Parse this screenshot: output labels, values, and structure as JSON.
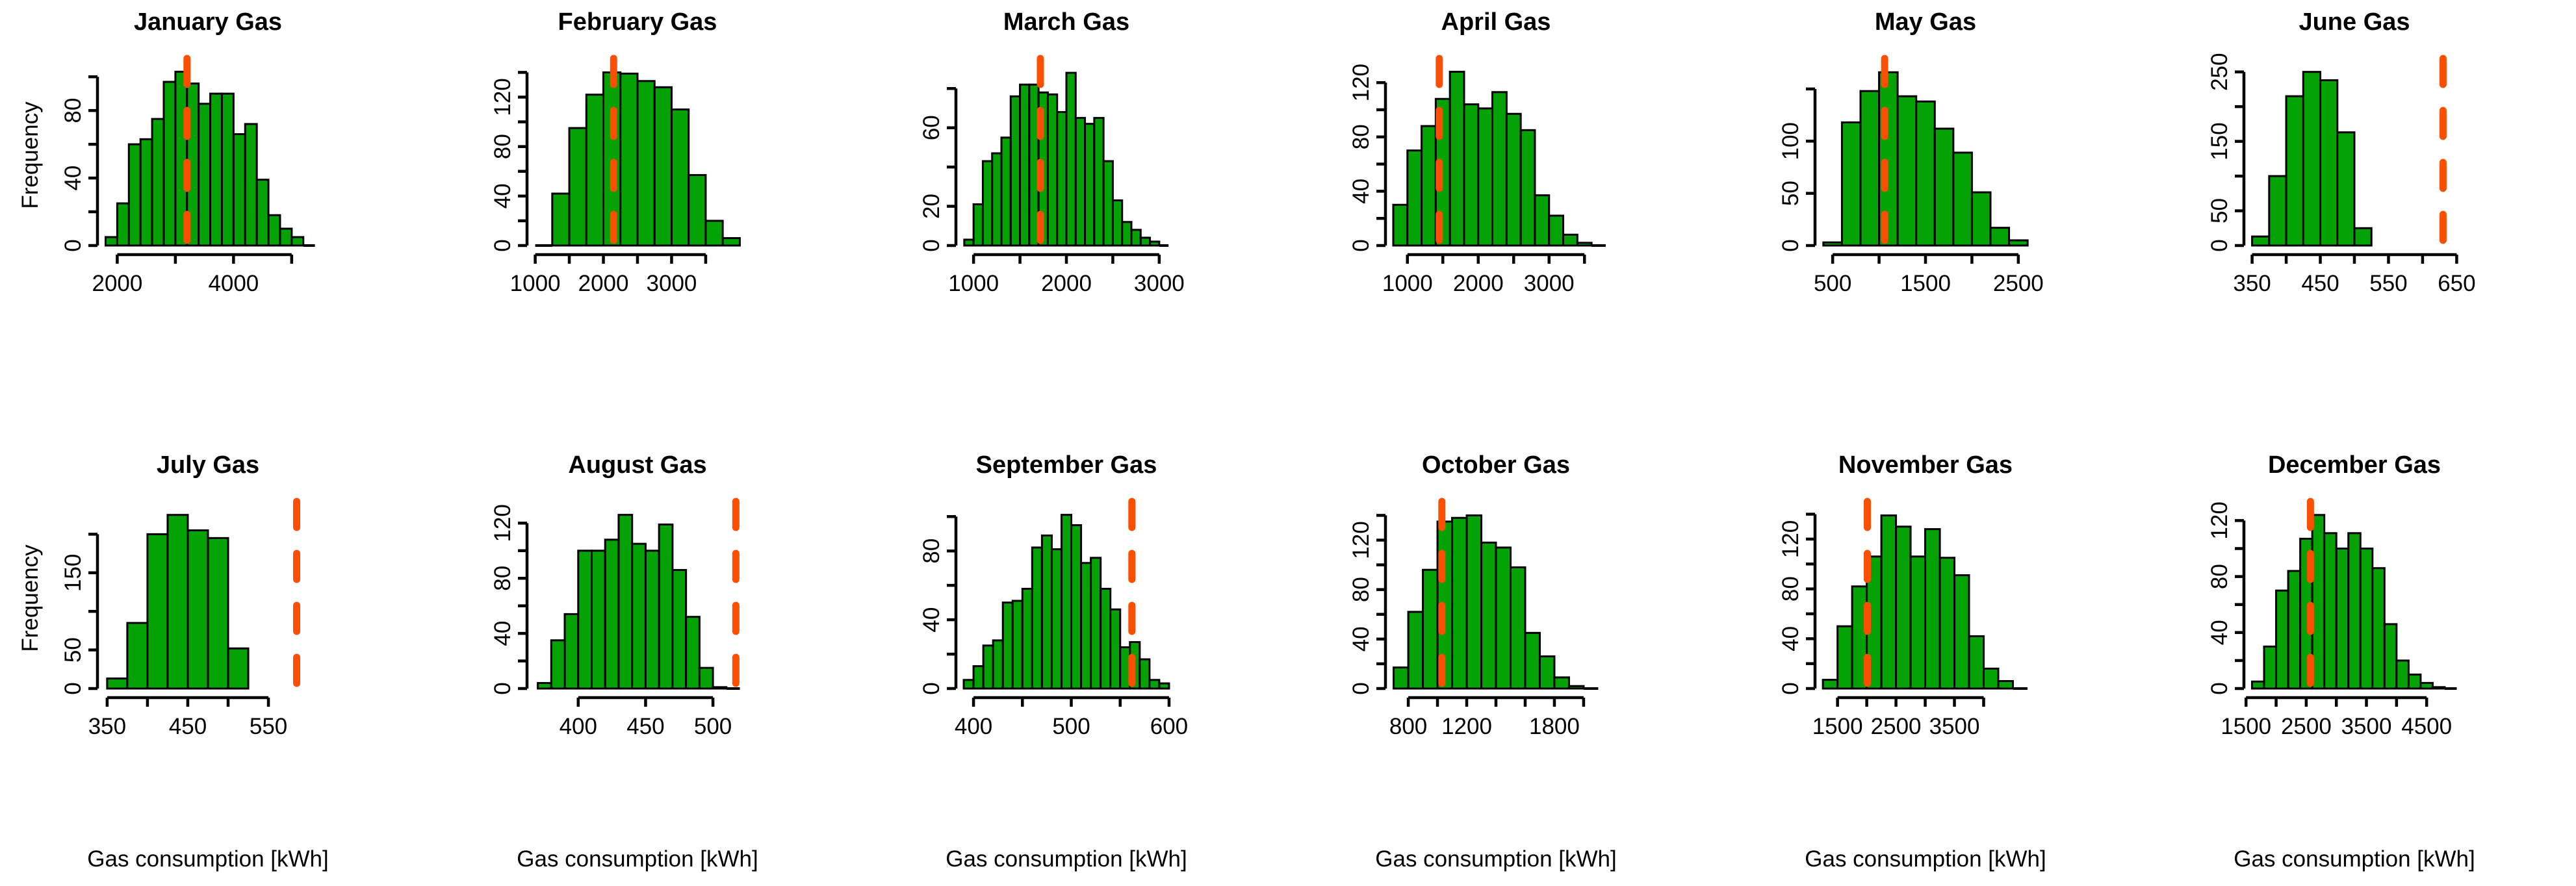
{
  "figure": {
    "background": "#ffffff",
    "ylab": "Frequency",
    "xlab": "Gas consumption [kWh]",
    "colors": {
      "bar_fill": "#04a204",
      "bar_stroke": "#000000",
      "axis": "#000000",
      "text": "#000000",
      "vline": "#fb5004"
    }
  },
  "chart_data": [
    {
      "type": "bar",
      "title": "January Gas",
      "bin_start": 1800,
      "bin_width": 200,
      "values": [
        5,
        25,
        60,
        63,
        75,
        97,
        103,
        96,
        84,
        90,
        90,
        66,
        72,
        39,
        18,
        10,
        5,
        0
      ],
      "xlim": [
        1660,
        5460
      ],
      "x_ticks": [
        2000,
        3000,
        4000,
        5000
      ],
      "x_tick_labels": [
        2000,
        4000
      ],
      "ylim": [
        0,
        107
      ],
      "y_ticks": [
        0,
        20,
        40,
        60,
        80,
        100
      ],
      "y_tick_labels": [
        0,
        40,
        80
      ],
      "vline": 3200,
      "show_ylab": true,
      "show_xlab": false
    },
    {
      "type": "bar",
      "title": "February Gas",
      "bin_start": 1000,
      "bin_width": 250,
      "values": [
        0,
        42,
        95,
        122,
        140,
        139,
        133,
        128,
        110,
        57,
        20,
        6
      ],
      "xlim": [
        880,
        4120
      ],
      "x_ticks": [
        1000,
        1500,
        2000,
        2500,
        3000,
        3500
      ],
      "x_tick_labels": [
        1000,
        2000,
        3000
      ],
      "ylim": [
        0,
        146
      ],
      "y_ticks": [
        0,
        20,
        40,
        60,
        80,
        100,
        120,
        140
      ],
      "y_tick_labels": [
        0,
        40,
        80,
        120
      ],
      "vline": 2150,
      "show_ylab": false,
      "show_xlab": false
    },
    {
      "type": "bar",
      "title": "March Gas",
      "bin_start": 900,
      "bin_width": 100,
      "values": [
        3,
        21,
        43,
        47,
        55,
        76,
        82,
        82,
        78,
        77,
        68,
        88,
        65,
        62,
        65,
        43,
        23,
        12,
        8,
        4,
        2,
        0
      ],
      "xlim": [
        810,
        3190
      ],
      "x_ticks": [
        1000,
        1500,
        2000,
        2500,
        3000
      ],
      "x_tick_labels": [
        1000,
        2000,
        3000
      ],
      "ylim": [
        0,
        92
      ],
      "y_ticks": [
        0,
        20,
        40,
        60,
        80
      ],
      "y_tick_labels": [
        0,
        20,
        60
      ],
      "vline": 1720,
      "show_ylab": false,
      "show_xlab": false
    },
    {
      "type": "bar",
      "title": "April Gas",
      "bin_start": 800,
      "bin_width": 200,
      "values": [
        30,
        70,
        88,
        108,
        128,
        104,
        101,
        113,
        97,
        85,
        37,
        22,
        8,
        2,
        0
      ],
      "xlim": [
        690,
        3810
      ],
      "x_ticks": [
        1000,
        1500,
        2000,
        2500,
        3000,
        3500
      ],
      "x_tick_labels": [
        1000,
        2000,
        3000
      ],
      "ylim": [
        0,
        133
      ],
      "y_ticks": [
        0,
        20,
        40,
        60,
        80,
        100,
        120
      ],
      "y_tick_labels": [
        0,
        40,
        80,
        120
      ],
      "vline": 1450,
      "show_ylab": false,
      "show_xlab": false
    },
    {
      "type": "bar",
      "title": "May Gas",
      "bin_start": 400,
      "bin_width": 200,
      "values": [
        3,
        118,
        148,
        166,
        143,
        138,
        112,
        89,
        51,
        17,
        5
      ],
      "xlim": [
        310,
        2690
      ],
      "x_ticks": [
        500,
        1000,
        1500,
        2000,
        2500
      ],
      "x_tick_labels": [
        500,
        1500,
        2500
      ],
      "ylim": [
        0,
        173
      ],
      "y_ticks": [
        0,
        50,
        100,
        150
      ],
      "y_tick_labels": [
        0,
        50,
        100
      ],
      "vline": 1060,
      "show_ylab": false,
      "show_xlab": false
    },
    {
      "type": "bar",
      "title": "June Gas",
      "bin_start": 350,
      "bin_width": 25,
      "values": [
        13,
        100,
        215,
        250,
        238,
        163,
        25
      ],
      "xlim": [
        338,
        662
      ],
      "x_ticks": [
        350,
        400,
        450,
        500,
        550,
        600,
        650
      ],
      "x_tick_labels": [
        350,
        450,
        550,
        650
      ],
      "ylim": [
        0,
        260
      ],
      "y_ticks": [
        0,
        50,
        100,
        150,
        200,
        250
      ],
      "y_tick_labels": [
        0,
        50,
        150,
        250
      ],
      "vline": 630,
      "show_ylab": false,
      "show_xlab": false
    },
    {
      "type": "bar",
      "title": "July Gas",
      "bin_start": 350,
      "bin_width": 25,
      "values": [
        13,
        85,
        200,
        225,
        205,
        195,
        52
      ],
      "xlim": [
        338,
        612
      ],
      "x_ticks": [
        350,
        400,
        450,
        500,
        550
      ],
      "x_tick_labels": [
        350,
        450,
        550
      ],
      "ylim": [
        0,
        234
      ],
      "y_ticks": [
        0,
        50,
        100,
        150,
        200
      ],
      "y_tick_labels": [
        0,
        50,
        150
      ],
      "vline": 585,
      "show_ylab": true,
      "show_xlab": true
    },
    {
      "type": "bar",
      "title": "August Gas",
      "bin_start": 370,
      "bin_width": 10,
      "values": [
        4,
        35,
        54,
        100,
        100,
        108,
        126,
        105,
        100,
        119,
        86,
        52,
        15,
        1,
        0
      ],
      "xlim": [
        362,
        526
      ],
      "x_ticks": [
        400,
        450,
        500
      ],
      "x_tick_labels": [
        400,
        450,
        500
      ],
      "ylim": [
        0,
        131
      ],
      "y_ticks": [
        0,
        20,
        40,
        60,
        80,
        100,
        120
      ],
      "y_tick_labels": [
        0,
        40,
        80,
        120
      ],
      "vline": 517,
      "show_ylab": false,
      "show_xlab": true
    },
    {
      "type": "bar",
      "title": "September Gas",
      "bin_start": 390,
      "bin_width": 10,
      "values": [
        5,
        13,
        25,
        28,
        50,
        51,
        58,
        82,
        89,
        81,
        101,
        95,
        73,
        76,
        58,
        46,
        24,
        27,
        17,
        5,
        3
      ],
      "xlim": [
        382,
        608
      ],
      "x_ticks": [
        400,
        450,
        500,
        550,
        600
      ],
      "x_tick_labels": [
        400,
        500,
        600
      ],
      "ylim": [
        0,
        105
      ],
      "y_ticks": [
        0,
        20,
        40,
        60,
        80,
        100
      ],
      "y_tick_labels": [
        0,
        40,
        80
      ],
      "vline": 562,
      "show_ylab": false,
      "show_xlab": true
    },
    {
      "type": "bar",
      "title": "October Gas",
      "bin_start": 700,
      "bin_width": 100,
      "values": [
        17,
        62,
        96,
        135,
        138,
        140,
        118,
        114,
        98,
        45,
        26,
        9,
        2,
        0
      ],
      "xlim": [
        644,
        2156
      ],
      "x_ticks": [
        800,
        1000,
        1200,
        1400,
        1600,
        1800,
        2000
      ],
      "x_tick_labels": [
        800,
        1200,
        1800
      ],
      "ylim": [
        0,
        146
      ],
      "y_ticks": [
        0,
        20,
        40,
        60,
        80,
        100,
        120,
        140
      ],
      "y_tick_labels": [
        0,
        40,
        80,
        120
      ],
      "vline": 1030,
      "show_ylab": false,
      "show_xlab": true
    },
    {
      "type": "bar",
      "title": "November Gas",
      "bin_start": 1250,
      "bin_width": 250,
      "values": [
        7,
        50,
        82,
        106,
        139,
        130,
        106,
        128,
        105,
        91,
        42,
        16,
        6,
        0
      ],
      "xlim": [
        1115,
        4895
      ],
      "x_ticks": [
        1500,
        2000,
        2500,
        3000,
        3500,
        4000
      ],
      "x_tick_labels": [
        1500,
        2500,
        3500
      ],
      "ylim": [
        0,
        145
      ],
      "y_ticks": [
        0,
        20,
        40,
        60,
        80,
        100,
        120,
        140
      ],
      "y_tick_labels": [
        0,
        40,
        80,
        120
      ],
      "vline": 2010,
      "show_ylab": false,
      "show_xlab": true
    },
    {
      "type": "bar",
      "title": "December Gas",
      "bin_start": 1600,
      "bin_width": 200,
      "values": [
        5,
        30,
        70,
        84,
        107,
        124,
        111,
        100,
        111,
        100,
        86,
        46,
        20,
        10,
        4,
        1,
        0
      ],
      "xlim": [
        1465,
        5135
      ],
      "x_ticks": [
        1500,
        2000,
        2500,
        3000,
        3500,
        4000,
        4500
      ],
      "x_tick_labels": [
        1500,
        2500,
        3500,
        4500
      ],
      "ylim": [
        0,
        129
      ],
      "y_ticks": [
        0,
        20,
        40,
        60,
        80,
        100,
        120
      ],
      "y_tick_labels": [
        0,
        40,
        80,
        120
      ],
      "vline": 2570,
      "show_ylab": false,
      "show_xlab": true
    }
  ]
}
